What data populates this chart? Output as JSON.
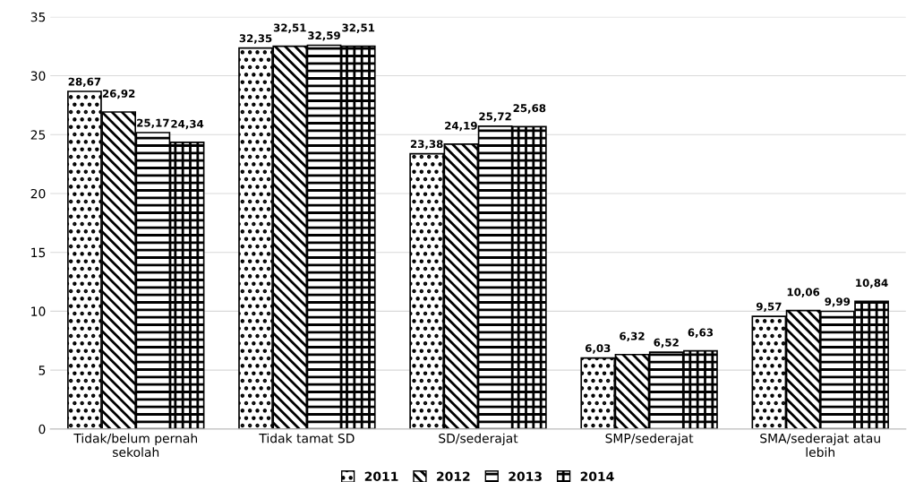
{
  "chart_data": {
    "type": "bar",
    "categories": [
      "Tidak/belum pernah\nsekolah",
      "Tidak tamat SD",
      "SD/sederajat",
      "SMP/sederajat",
      "SMA/sederajat atau\nlebih"
    ],
    "series": [
      {
        "name": "2011",
        "color": "#000000",
        "values": [
          28.67,
          32.35,
          23.38,
          6.03,
          9.57
        ],
        "value_labels": [
          "28,67",
          "32,35",
          "23,38",
          "6,03",
          "9,57"
        ]
      },
      {
        "name": "2012",
        "color": "#000000",
        "values": [
          26.92,
          32.51,
          24.19,
          6.32,
          10.06
        ],
        "value_labels": [
          "26,92",
          "32,51",
          "24,19",
          "6,32",
          "10,06"
        ]
      },
      {
        "name": "2013",
        "color": "#000000",
        "values": [
          25.17,
          32.59,
          25.72,
          6.52,
          9.99
        ],
        "value_labels": [
          "25,17",
          "32,59",
          "25,72",
          "6,52",
          "9,99"
        ]
      },
      {
        "name": "2014",
        "color": "#000000",
        "values": [
          24.34,
          32.51,
          25.68,
          6.63,
          10.84
        ],
        "value_labels": [
          "24,34",
          "32,51",
          "25,68",
          "6,63",
          "10,84"
        ]
      }
    ],
    "ylim": [
      0,
      35
    ],
    "yticks": [
      0,
      5,
      10,
      15,
      20,
      25,
      30,
      35
    ],
    "grid": "y",
    "legend": "bottom"
  }
}
